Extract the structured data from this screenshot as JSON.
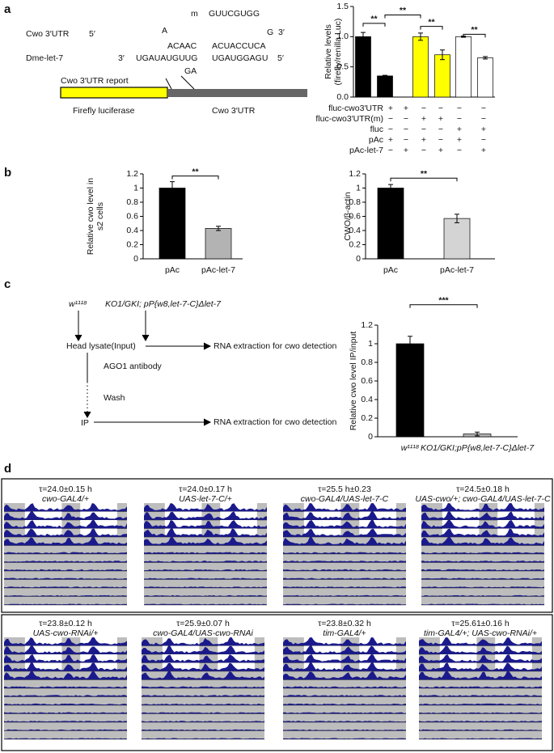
{
  "panel_labels": [
    "a",
    "b",
    "c",
    "d"
  ],
  "reporter_diagram": {
    "utr_label": "Cwo 3′UTR",
    "utr_5": "5′",
    "utr_3": "3′",
    "seed_m": "m",
    "seed_mut": "GUUCGUGG",
    "bulge_a": "A",
    "utr_seq1": "ACAAC",
    "utr_seq2": "ACUACCUCA",
    "utr_g": "G",
    "mir_label": "Dme-let-7",
    "mir_3": "3′",
    "mir_seq1": "UGAUAUGUUG",
    "mir_seq2": "UGAUGGAGU",
    "mir_5": "5′",
    "mir_ga": "GA",
    "report_label": "Cwo 3′UTR report",
    "firefly_label": "Firefly luciferase",
    "utr_box_label": "Cwo 3′UTR"
  },
  "ip_diagram": {
    "strain1": "w¹¹¹⁸",
    "strain2": "KO1/GKI; pP{w8,let-7-C}Δlet-7",
    "lysate": "Head lysate(Input)",
    "rna1": "RNA extraction for cwo detection",
    "antibody": "AGO1 antibody",
    "wash": "Wash",
    "ip": "IP",
    "rna2": "RNA extraction for cwo detection"
  },
  "chart_data": [
    {
      "type": "bar",
      "ylabel_lines": [
        "Relative levels",
        "(firefly/renilla Luc)"
      ],
      "categories": [
        null,
        null,
        null,
        null,
        null,
        null
      ],
      "values": [
        1.0,
        0.35,
        1.0,
        0.7,
        1.0,
        0.65
      ],
      "errors": [
        0.07,
        0.01,
        0.06,
        0.08,
        0.01,
        0.02
      ],
      "colors": [
        "#000000",
        "#000000",
        "#ffff00",
        "#ffff00",
        "#ffffff",
        "#ffffff"
      ],
      "ylim": [
        0,
        1.5
      ],
      "yticks": [
        {
          "value": 0,
          "label": "0.0"
        },
        0.5,
        {
          "value": 1,
          "label": "1.0"
        },
        1.5
      ],
      "annotations": [
        "**",
        "**",
        "**",
        "**"
      ],
      "conditions": [
        {
          "label": "fluc-cwo3′UTR",
          "cells": [
            "+",
            "+",
            "−",
            "−",
            "−",
            "−"
          ]
        },
        {
          "label": "fluc-cwo3′UTR(m)",
          "cells": [
            "−",
            "−",
            "+",
            "+",
            "−",
            "−"
          ]
        },
        {
          "label": "fluc",
          "cells": [
            "−",
            "−",
            "−",
            "−",
            "+",
            "+"
          ]
        },
        {
          "label": "pAc",
          "cells": [
            "+",
            "−",
            "+",
            "−",
            "+",
            "−"
          ]
        },
        {
          "label": "pAc-let-7",
          "cells": [
            "−",
            "+",
            "−",
            "+",
            "−",
            "+"
          ]
        }
      ]
    },
    {
      "type": "bar",
      "ylabel_lines": [
        "Relative cwo level in",
        "s2 cells"
      ],
      "categories": [
        "pAc",
        "pAc-let-7"
      ],
      "values": [
        1.0,
        0.43
      ],
      "errors": [
        0.09,
        0.03
      ],
      "colors": [
        "#000000",
        "#b3b3b3"
      ],
      "ylim": [
        0,
        1.2
      ],
      "yticks": [
        0,
        0.2,
        0.4,
        0.6,
        0.8,
        1,
        1.2
      ],
      "annotations": [
        "**"
      ]
    },
    {
      "type": "bar",
      "ylabel_lines": [
        "CWO/β-actin"
      ],
      "categories": [
        "pAc",
        "pAc-let-7"
      ],
      "values": [
        1.0,
        0.57
      ],
      "errors": [
        0.05,
        0.06
      ],
      "colors": [
        "#000000",
        "#d4d4d4"
      ],
      "ylim": [
        0,
        1.2
      ],
      "yticks": [
        0,
        0.2,
        0.4,
        0.6,
        0.8,
        1,
        1.2
      ],
      "annotations": [
        "**"
      ]
    },
    {
      "type": "bar",
      "ylabel_lines": [
        "Relative cwo level IP/input"
      ],
      "categories": [
        "w¹¹¹⁸",
        "KO1/GKI;pP{w8,let-7-C}Δlet-7"
      ],
      "values": [
        1.0,
        0.03
      ],
      "errors": [
        0.08,
        0.02
      ],
      "colors": [
        "#000000",
        "#b3b3b3"
      ],
      "ylim": [
        0,
        1.2
      ],
      "yticks": [
        0,
        0.2,
        0.4,
        0.6,
        0.8,
        1,
        1.2
      ],
      "annotations": [
        "***"
      ]
    }
  ],
  "actograms": [
    {
      "period": "τ=24.0±0.15 h",
      "genotype": "cwo-GAL4/+"
    },
    {
      "period": "τ=24.0±0.17 h",
      "genotype": "UAS-let-7-C/+"
    },
    {
      "period": "τ=25.5 h±0.23",
      "genotype": "cwo-GAL4/UAS-let-7-C"
    },
    {
      "period": "τ=24.5±0.18 h",
      "genotype": "UAS-cwo/+; cwo-GAL4/UAS-let-7-C"
    },
    {
      "period": "τ=23.8±0.12 h",
      "genotype": "UAS-cwo-RNAi/+"
    },
    {
      "period": "τ=25.9±0.07 h",
      "genotype": "cwo-GAL4/UAS-cwo-RNAi"
    },
    {
      "period": "τ=23.8±0.32 h",
      "genotype": "tim-GAL4/+"
    },
    {
      "period": "τ=25.61±0.16 h",
      "genotype": "tim-GAL4/+; UAS-cwo-RNAi/+"
    }
  ]
}
